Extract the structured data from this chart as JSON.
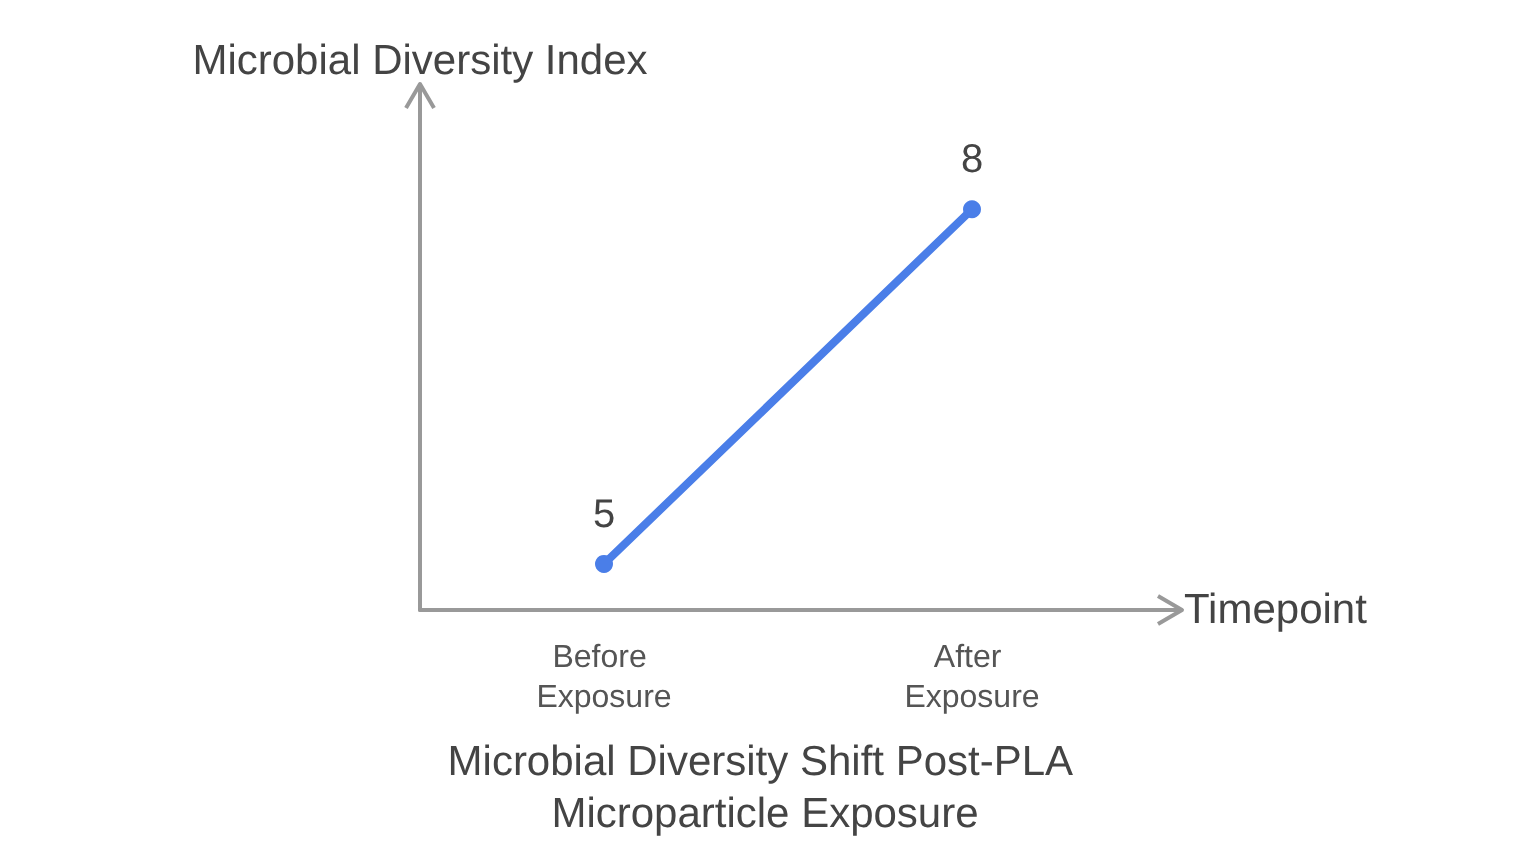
{
  "chart_data": {
    "type": "line",
    "title": "Microbial Diversity Shift Post-PLA Microparticle Exposure",
    "xlabel": "Timepoint",
    "ylabel": "Microbial Diversity Index",
    "categories": [
      "Before Exposure",
      "After Exposure"
    ],
    "series": [
      {
        "color": "#4a7ee8",
        "values": [
          5,
          8
        ]
      }
    ],
    "data_labels": true,
    "marker": "circle",
    "line_style": "solid",
    "grid": false,
    "tick_labels": "x"
  }
}
